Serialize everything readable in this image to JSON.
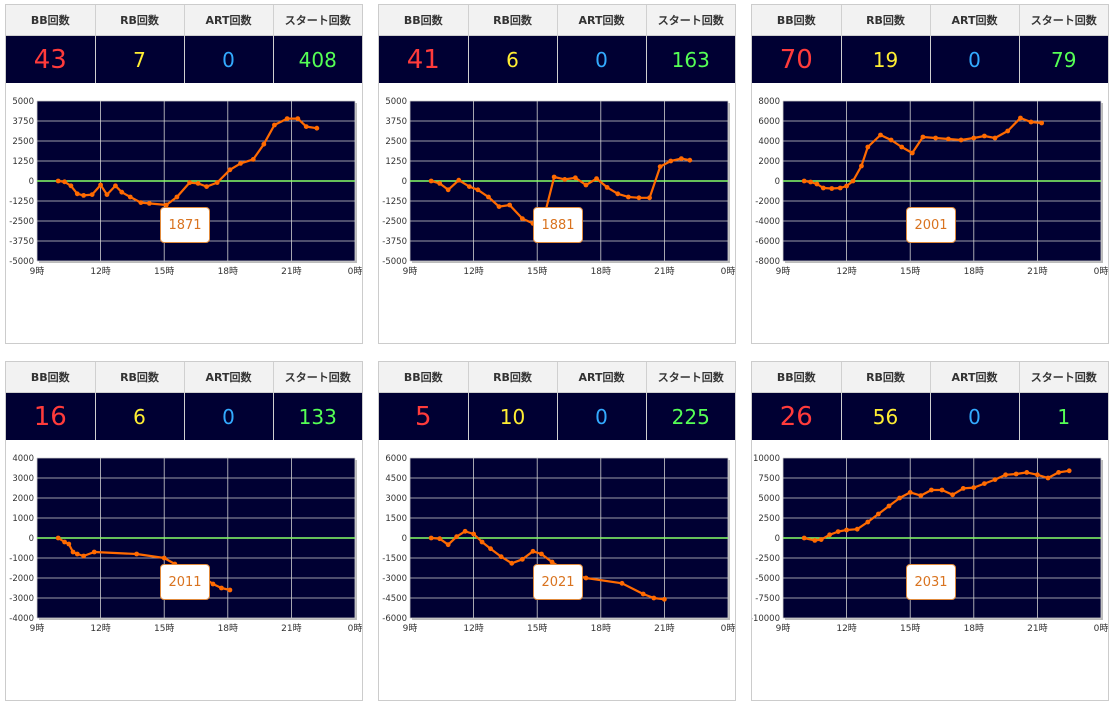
{
  "headers": [
    "BB回数",
    "RB回数",
    "ART回数",
    "スタート回数"
  ],
  "colors": {
    "bb": "#ff3b3b",
    "rb": "#ffee33",
    "art": "#33aaff",
    "start": "#55ff55",
    "plot_bg": "#000033",
    "line": "#ff6a00",
    "zero_line": "#88ff66",
    "button": "#e08a3c"
  },
  "x_ticks": [
    "9時",
    "12時",
    "15時",
    "18時",
    "21時",
    "0時"
  ],
  "machines": [
    {
      "number": "1871",
      "bb": "43",
      "rb": "7",
      "art": "0",
      "start": "408",
      "chart_data": {
        "type": "line",
        "xlim": [
          9,
          24
        ],
        "ylim": [
          -5000,
          5000
        ],
        "y_ticks": [
          "5000",
          "3750",
          "2500",
          "1250",
          "0",
          "-1250",
          "-2500",
          "-3750",
          "-5000"
        ],
        "x": [
          10.0,
          10.3,
          10.6,
          10.9,
          11.2,
          11.6,
          12.0,
          12.3,
          12.7,
          13.0,
          13.4,
          13.9,
          14.3,
          15.1,
          15.6,
          16.2,
          16.6,
          17.0,
          17.5,
          18.1,
          18.6,
          19.2,
          19.7,
          20.2,
          20.8,
          21.3,
          21.7,
          22.2
        ],
        "y": [
          0,
          -50,
          -300,
          -800,
          -900,
          -850,
          -250,
          -850,
          -300,
          -700,
          -1000,
          -1350,
          -1400,
          -1500,
          -1000,
          -100,
          -150,
          -350,
          -100,
          700,
          1100,
          1350,
          2300,
          3500,
          3900,
          3900,
          3400,
          3300
        ]
      }
    },
    {
      "number": "1881",
      "bb": "41",
      "rb": "6",
      "art": "0",
      "start": "163",
      "chart_data": {
        "type": "line",
        "xlim": [
          9,
          24
        ],
        "ylim": [
          -5000,
          5000
        ],
        "y_ticks": [
          "5000",
          "3750",
          "2500",
          "1250",
          "0",
          "-1250",
          "-2500",
          "-3750",
          "-5000"
        ],
        "x": [
          10.0,
          10.4,
          10.8,
          11.3,
          11.8,
          12.2,
          12.7,
          13.2,
          13.7,
          14.3,
          14.8,
          15.2,
          15.8,
          16.3,
          16.8,
          17.3,
          17.8,
          18.3,
          18.8,
          19.3,
          19.8,
          20.3,
          20.8,
          21.3,
          21.8,
          22.2
        ],
        "y": [
          0,
          -150,
          -550,
          50,
          -350,
          -550,
          -1000,
          -1600,
          -1500,
          -2350,
          -2650,
          -2900,
          250,
          100,
          200,
          -250,
          150,
          -400,
          -800,
          -1000,
          -1050,
          -1050,
          900,
          1250,
          1400,
          1300
        ]
      }
    },
    {
      "number": "2001",
      "bb": "70",
      "rb": "19",
      "art": "0",
      "start": "79",
      "chart_data": {
        "type": "line",
        "xlim": [
          9,
          24
        ],
        "ylim": [
          -8000,
          8000
        ],
        "y_ticks": [
          "8000",
          "6000",
          "4000",
          "2000",
          "0",
          "-2000",
          "-4000",
          "-6000",
          "-8000"
        ],
        "x": [
          10.0,
          10.3,
          10.6,
          10.9,
          11.3,
          11.7,
          12.0,
          12.3,
          12.7,
          13.0,
          13.6,
          14.1,
          14.6,
          15.1,
          15.6,
          16.2,
          16.8,
          17.4,
          18.0,
          18.5,
          19.0,
          19.6,
          20.2,
          20.7,
          21.2
        ],
        "y": [
          0,
          -100,
          -300,
          -700,
          -750,
          -700,
          -500,
          0,
          1500,
          3400,
          4600,
          4100,
          3400,
          2800,
          4400,
          4300,
          4200,
          4100,
          4300,
          4500,
          4300,
          5000,
          6300,
          5900,
          5800
        ]
      }
    },
    {
      "number": "2011",
      "bb": "16",
      "rb": "6",
      "art": "0",
      "start": "133",
      "chart_data": {
        "type": "line",
        "xlim": [
          9,
          24
        ],
        "ylim": [
          -4000,
          4000
        ],
        "y_ticks": [
          "4000",
          "3000",
          "2000",
          "1000",
          "0",
          "-1000",
          "-2000",
          "-3000",
          "-4000"
        ],
        "x": [
          10.0,
          10.3,
          10.5,
          10.7,
          10.9,
          11.2,
          11.7,
          13.7,
          15.0,
          15.5,
          16.0,
          16.5,
          16.9,
          17.3,
          17.7,
          18.1
        ],
        "y": [
          0,
          -200,
          -300,
          -700,
          -800,
          -900,
          -700,
          -800,
          -1000,
          -1300,
          -2000,
          -2200,
          -2000,
          -2300,
          -2500,
          -2600
        ]
      }
    },
    {
      "number": "2021",
      "bb": "5",
      "rb": "10",
      "art": "0",
      "start": "225",
      "chart_data": {
        "type": "line",
        "xlim": [
          9,
          24
        ],
        "ylim": [
          -6000,
          6000
        ],
        "y_ticks": [
          "6000",
          "4500",
          "3000",
          "1500",
          "0",
          "-1500",
          "-3000",
          "-4500",
          "-6000"
        ],
        "x": [
          10.0,
          10.4,
          10.8,
          11.2,
          11.6,
          12.0,
          12.4,
          12.8,
          13.3,
          13.8,
          14.3,
          14.8,
          15.2,
          15.7,
          16.2,
          16.8,
          17.3,
          19.0,
          20.0,
          20.5,
          21.0
        ],
        "y": [
          0,
          -50,
          -500,
          100,
          500,
          300,
          -300,
          -800,
          -1400,
          -1900,
          -1600,
          -1000,
          -1200,
          -1800,
          -2300,
          -2800,
          -3000,
          -3400,
          -4200,
          -4500,
          -4600
        ]
      }
    },
    {
      "number": "2031",
      "bb": "26",
      "rb": "56",
      "art": "0",
      "start": "1",
      "chart_data": {
        "type": "line",
        "xlim": [
          9,
          24
        ],
        "ylim": [
          -10000,
          10000
        ],
        "y_ticks": [
          "10000",
          "7500",
          "5000",
          "2500",
          "0",
          "-2500",
          "-5000",
          "-7500",
          "-10000"
        ],
        "x": [
          10.0,
          10.5,
          10.8,
          11.2,
          11.6,
          12.0,
          12.5,
          13.0,
          13.5,
          14.0,
          14.5,
          15.0,
          15.5,
          16.0,
          16.5,
          17.0,
          17.5,
          18.0,
          18.5,
          19.0,
          19.5,
          20.0,
          20.5,
          21.0,
          21.5,
          22.0,
          22.5
        ],
        "y": [
          0,
          -300,
          -200,
          400,
          800,
          1000,
          1100,
          2000,
          3000,
          4000,
          5000,
          5700,
          5300,
          6000,
          6000,
          5400,
          6200,
          6300,
          6800,
          7300,
          7900,
          8000,
          8200,
          7900,
          7500,
          8200,
          8400
        ]
      }
    }
  ]
}
